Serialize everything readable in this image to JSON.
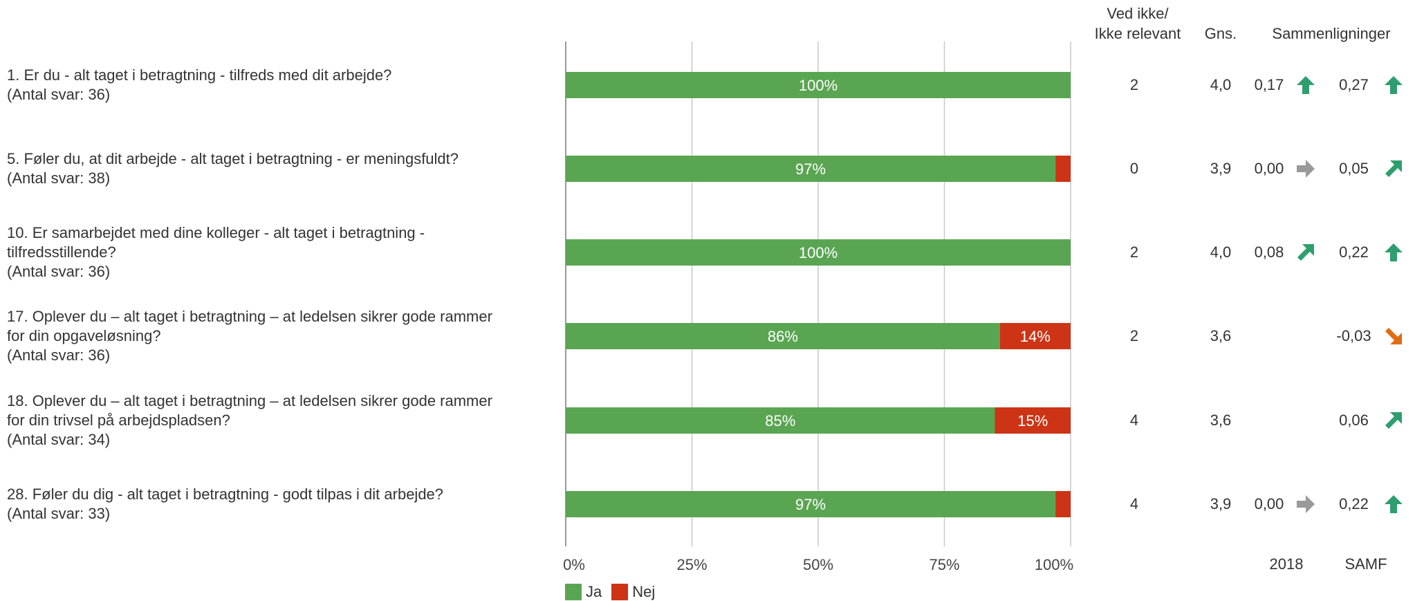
{
  "headers": {
    "ved_ikke_line1": "Ved ikke/",
    "ved_ikke_line2": "Ikke relevant",
    "gns": "Gns.",
    "sammenligninger": "Sammenligninger"
  },
  "bottom_labels": {
    "year": "2018",
    "samf": "SAMF"
  },
  "colors": {
    "ja": "#5aa552",
    "nej": "#cc3415",
    "grid": "#c8c8c8",
    "up": "#2e9e6e",
    "neutral": "#9a9a9a",
    "down": "#e06c13"
  },
  "rows": [
    {
      "lines": [
        "1. Er du - alt taget i betragtning - tilfreds med dit arbejde?",
        "(Antal svar: 36)"
      ],
      "ja": 100,
      "nej": 0,
      "ja_label": "100%",
      "nej_label": "",
      "ved_ikke": "2",
      "gns": "4,0",
      "cmp1": "0,17",
      "cmp1_icon": "arrow-up-icon",
      "cmp2": "0,27",
      "cmp2_icon": "arrow-up-icon"
    },
    {
      "lines": [
        "5. Føler du, at dit arbejde - alt taget i betragtning - er meningsfuldt?",
        "(Antal svar: 38)"
      ],
      "ja": 97,
      "nej": 3,
      "ja_label": "97%",
      "nej_label": "",
      "ved_ikke": "0",
      "gns": "3,9",
      "cmp1": "0,00",
      "cmp1_icon": "arrow-right-icon",
      "cmp2": "0,05",
      "cmp2_icon": "arrow-up-right-icon"
    },
    {
      "lines": [
        "10. Er samarbejdet med dine kolleger - alt taget i betragtning -",
        "tilfredsstillende?",
        "(Antal svar: 36)"
      ],
      "ja": 100,
      "nej": 0,
      "ja_label": "100%",
      "nej_label": "",
      "ved_ikke": "2",
      "gns": "4,0",
      "cmp1": "0,08",
      "cmp1_icon": "arrow-up-right-icon",
      "cmp2": "0,22",
      "cmp2_icon": "arrow-up-icon"
    },
    {
      "lines": [
        "17. Oplever du – alt taget i betragtning – at ledelsen sikrer gode rammer",
        "for din opgaveløsning?",
        "(Antal svar: 36)"
      ],
      "ja": 86,
      "nej": 14,
      "ja_label": "86%",
      "nej_label": "14%",
      "ved_ikke": "2",
      "gns": "3,6",
      "cmp1": "",
      "cmp1_icon": "",
      "cmp2": "-0,03",
      "cmp2_icon": "arrow-down-right-icon"
    },
    {
      "lines": [
        "18. Oplever du – alt taget i betragtning – at ledelsen sikrer gode rammer",
        "for din trivsel på arbejdspladsen?",
        "(Antal svar: 34)"
      ],
      "ja": 85,
      "nej": 15,
      "ja_label": "85%",
      "nej_label": "15%",
      "ved_ikke": "4",
      "gns": "3,6",
      "cmp1": "",
      "cmp1_icon": "",
      "cmp2": "0,06",
      "cmp2_icon": "arrow-up-right-icon"
    },
    {
      "lines": [
        "28. Føler du dig - alt taget i betragtning - godt tilpas i dit arbejde?",
        "(Antal svar: 33)"
      ],
      "ja": 97,
      "nej": 3,
      "ja_label": "97%",
      "nej_label": "",
      "ved_ikke": "4",
      "gns": "3,9",
      "cmp1": "0,00",
      "cmp1_icon": "arrow-right-icon",
      "cmp2": "0,22",
      "cmp2_icon": "arrow-up-icon"
    }
  ],
  "chart_data": {
    "type": "bar",
    "orientation": "horizontal",
    "stacked": true,
    "categories": [
      "1.",
      "5.",
      "10.",
      "17.",
      "18.",
      "28."
    ],
    "series": [
      {
        "name": "Ja",
        "values": [
          100,
          97,
          100,
          86,
          85,
          97
        ]
      },
      {
        "name": "Nej",
        "values": [
          0,
          3,
          0,
          14,
          15,
          3
        ]
      }
    ],
    "xlim": [
      0,
      100
    ],
    "x_ticks": [
      "0%",
      "25%",
      "50%",
      "75%",
      "100%"
    ],
    "grid": true,
    "legend": "bottom-left"
  },
  "legend": [
    {
      "label": "Ja",
      "color": "#5aa552"
    },
    {
      "label": "Nej",
      "color": "#cc3415"
    }
  ]
}
